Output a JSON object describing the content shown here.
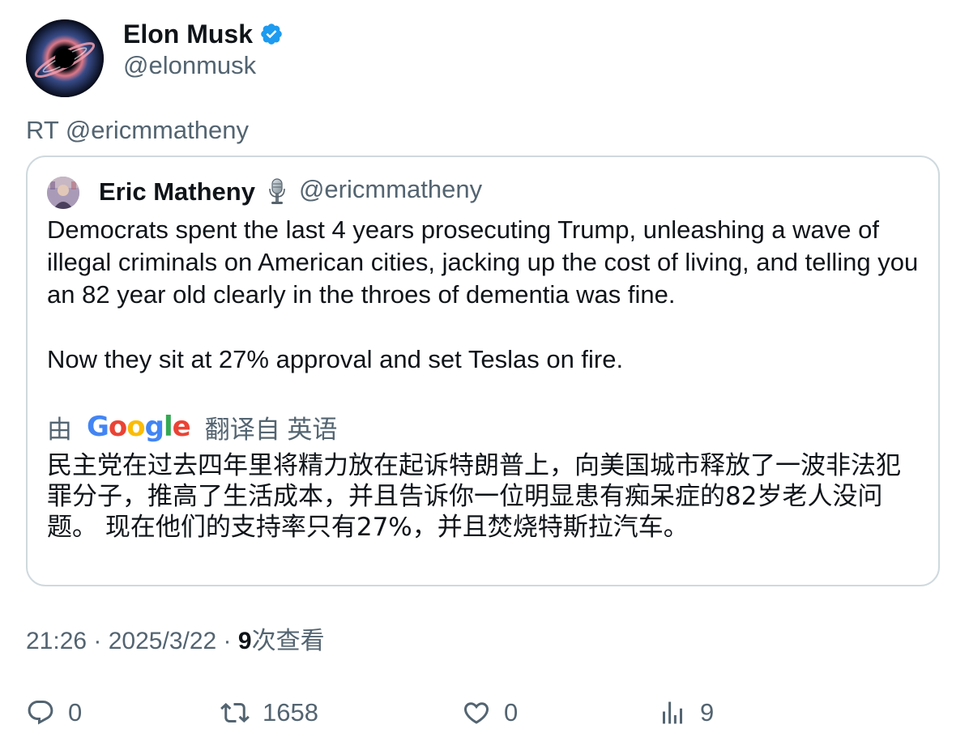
{
  "tweet": {
    "author": {
      "name": "Elon Musk",
      "handle": "@elonmusk",
      "verified": true,
      "badge_color": "#1d9bf0"
    },
    "retweet_label": "RT @ericmmatheny",
    "quote": {
      "author_name": "Eric Matheny",
      "author_emoji_icon": "microphone-icon",
      "author_handle": "@ericmmatheny",
      "text_paragraph_1": "Democrats spent the last 4 years prosecuting Trump, unleashing a wave of illegal criminals on American cities, jacking up the cost of living, and telling you an 82 year old clearly in the throes of dementia was fine.",
      "text_paragraph_2": "Now they sit at 27% approval and set Teslas on fire.",
      "translation": {
        "prefix": "由",
        "provider": "Google",
        "suffix": "翻译自 英语",
        "text": "民主党在过去四年里将精力放在起诉特朗普上，向美国城市释放了一波非法犯罪分子，推高了生活成本，并且告诉你一位明显患有痴呆症的82岁老人没问题。 现在他们的支持率只有27%，并且焚烧特斯拉汽车。"
      }
    },
    "meta": {
      "time": "21:26",
      "separator": " · ",
      "date": "2025/3/22",
      "views_count": "9",
      "views_label": "次查看"
    },
    "actions": {
      "replies": "0",
      "retweets": "1658",
      "likes": "0",
      "views": "9"
    }
  },
  "colors": {
    "text_primary": "#0f1419",
    "text_secondary": "#536471",
    "border": "#cfd9de",
    "verified_blue": "#1d9bf0"
  }
}
